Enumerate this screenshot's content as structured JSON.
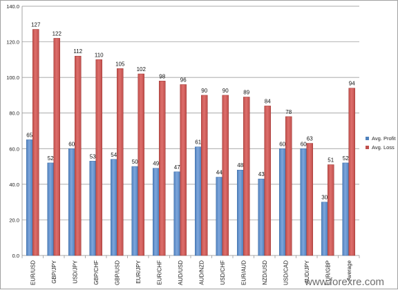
{
  "chart_data": {
    "type": "bar",
    "title": "",
    "xlabel": "",
    "ylabel": "",
    "ylim": [
      0,
      140
    ],
    "yticks": [
      "0.0",
      "20.0",
      "40.0",
      "60.0",
      "80.0",
      "100.0",
      "120.0",
      "140.0"
    ],
    "grid": true,
    "legend_position": "right",
    "categories": [
      "EUR/USD",
      "GBP/JPY",
      "USD/JPY",
      "GBP/CHF",
      "GBP/USD",
      "EUR/JPY",
      "EUR/CHF",
      "AUD/USD",
      "AUD/NZD",
      "USD/CHF",
      "EUR/AUD",
      "NZD/USD",
      "USD/CAD",
      "AUD/JPY",
      "EUR/GBP",
      "Average"
    ],
    "series": [
      {
        "name": "Avg. Profit",
        "color": "#4f81bd",
        "values": [
          65,
          52,
          60,
          53,
          54,
          50,
          49,
          47,
          61,
          44,
          48,
          43,
          60,
          60,
          30,
          52
        ]
      },
      {
        "name": "Avg. Loss",
        "color": "#c0504d",
        "values": [
          127,
          122,
          112,
          110,
          105,
          102,
          98,
          96,
          90,
          90,
          89,
          84,
          78,
          63,
          51,
          94
        ]
      }
    ]
  },
  "watermark": "www.forexre.com"
}
